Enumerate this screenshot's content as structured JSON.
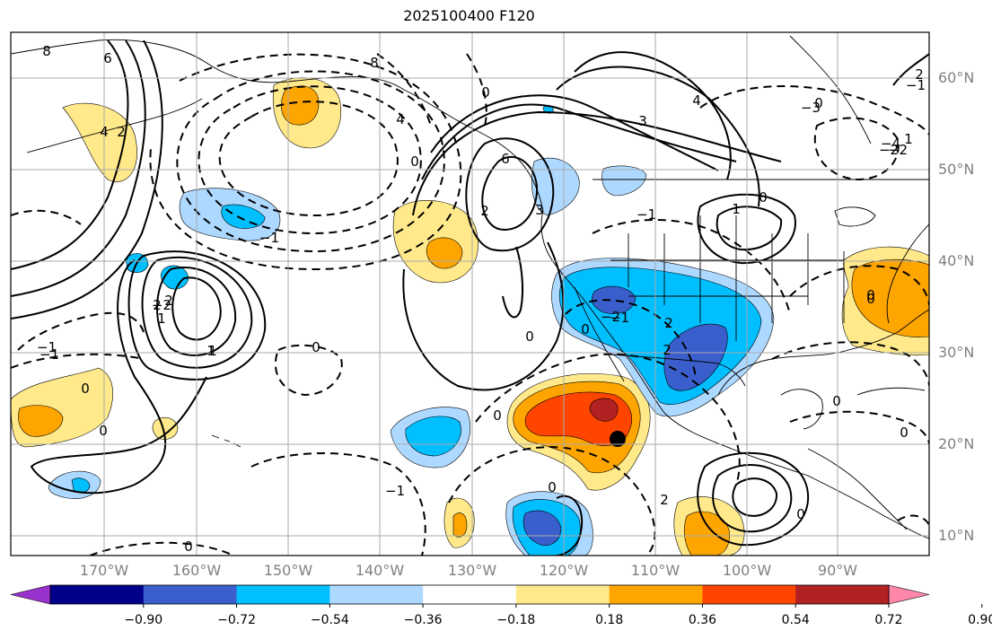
{
  "title": "2025100400 F120",
  "lat_labels": [
    "60°N",
    "50°N",
    "40°N",
    "30°N",
    "20°N",
    "10°N"
  ],
  "lon_labels": [
    "170°W",
    "160°W",
    "150°W",
    "140°W",
    "130°W",
    "120°W",
    "110°W",
    "100°W",
    "90°W"
  ],
  "colorbar": {
    "tick_labels": [
      "−0.90",
      "−0.72",
      "−0.54",
      "−0.36",
      "−0.18",
      "0.18",
      "0.36",
      "0.54",
      "0.72",
      "0.90"
    ],
    "colors": [
      "#9932cc",
      "#00008b",
      "#3a5fcd",
      "#00bfff",
      "#add8ff",
      "#ffffff",
      "#ffe98a",
      "#ffa500",
      "#ff4500",
      "#b22222",
      "#ff88aa"
    ]
  },
  "contour_labels": [
    "8",
    "6",
    "4",
    "2",
    "0",
    "−1",
    "−2",
    "0",
    "0",
    "−1",
    "2",
    "1",
    "1",
    "0",
    "8",
    "4",
    "3",
    "0",
    "6",
    "0",
    "2",
    "0",
    "3",
    "4",
    "1",
    "−1",
    "0",
    "0",
    "−2",
    "0",
    "2",
    "2",
    "0",
    "−1",
    "2",
    "−1",
    "0",
    "0",
    "−1",
    "1",
    "2",
    "0",
    "−2",
    "0",
    "−1",
    "0",
    "1",
    "2",
    "−4",
    "−3",
    "−2",
    "0"
  ],
  "marker": {
    "label": "storm-center",
    "lon": -113.8,
    "lat": 20.7
  }
}
